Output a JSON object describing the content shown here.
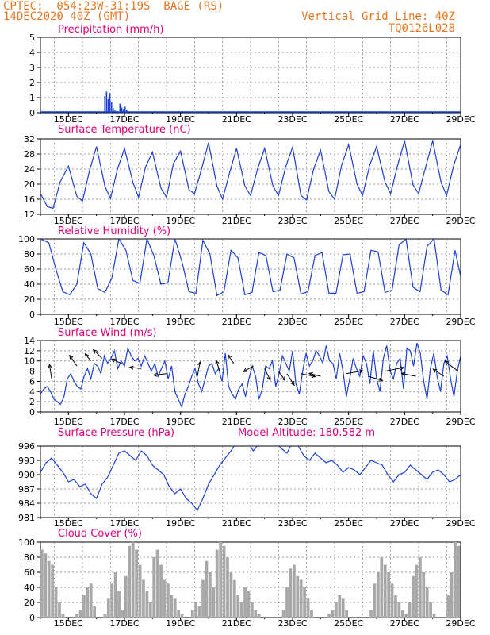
{
  "header": {
    "line1_left": "CPTEC:  054:23W-31:19S  BAGE (RS)",
    "line2_left": "14DEC2020 40Z (GMT)",
    "line2_right": "Vertical Grid Line: 40Z",
    "line3_right": "TQ0126L028"
  },
  "colors": {
    "header": "#e87722",
    "title": "#e0007a",
    "series": "#1a3fd6",
    "arrows": "#000000",
    "cloud": "#a8a8a8"
  },
  "x_ticks": [
    "15DEC",
    "17DEC",
    "19DEC",
    "21DEC",
    "23DEC",
    "25DEC",
    "27DEC",
    "29DEC"
  ],
  "chart_data": [
    {
      "type": "bar",
      "title": "Precipitation (mm/h)",
      "ylim": [
        0,
        5
      ],
      "yticks": [
        "0",
        "1",
        "2",
        "3",
        "4",
        "5"
      ],
      "x_days": [
        16.3,
        16.36,
        16.42,
        16.48,
        16.54,
        16.6,
        16.66,
        16.72,
        16.84,
        16.9,
        16.96,
        17.02,
        17.08
      ],
      "values": [
        1.1,
        1.4,
        0.9,
        1.3,
        0.7,
        0.3,
        0.15,
        0.1,
        0.6,
        0.35,
        0.25,
        0.4,
        0.2
      ]
    },
    {
      "type": "line",
      "title": "Surface Temperature (nC)",
      "ylim": [
        12,
        32
      ],
      "yticks": [
        "12",
        "16",
        "20",
        "24",
        "28",
        "32"
      ],
      "x_days": [
        14.0,
        14.25,
        14.45,
        14.7,
        15.0,
        15.3,
        15.5,
        15.75,
        16.0,
        16.3,
        16.5,
        16.75,
        17.0,
        17.3,
        17.5,
        17.75,
        18.0,
        18.3,
        18.5,
        18.75,
        19.0,
        19.3,
        19.5,
        19.75,
        20.0,
        20.3,
        20.5,
        20.75,
        21.0,
        21.3,
        21.5,
        21.75,
        22.0,
        22.3,
        22.5,
        22.75,
        23.0,
        23.3,
        23.5,
        23.75,
        24.0,
        24.3,
        24.5,
        24.75,
        25.0,
        25.3,
        25.5,
        25.75,
        26.0,
        26.3,
        26.5,
        26.75,
        27.0,
        27.3,
        27.5,
        27.75,
        28.0,
        28.3,
        28.5,
        28.75,
        29.0
      ],
      "values": [
        17.5,
        14.0,
        13.6,
        20.5,
        24.8,
        16.8,
        15.5,
        23.5,
        30.0,
        19.5,
        16.2,
        24.0,
        29.5,
        20.5,
        16.5,
        24.5,
        28.5,
        19.0,
        16.5,
        25.5,
        28.8,
        18.5,
        17.5,
        24.0,
        31.0,
        19.5,
        16.0,
        23.0,
        29.5,
        19.5,
        17.0,
        24.0,
        29.5,
        19.5,
        17.0,
        24.5,
        29.8,
        17.0,
        15.8,
        24.0,
        29.0,
        18.0,
        16.0,
        25.0,
        30.5,
        20.0,
        17.0,
        25.0,
        30.0,
        20.5,
        17.5,
        25.0,
        31.5,
        19.8,
        17.5,
        24.5,
        31.5,
        20.5,
        17.0,
        25.0,
        30.5
      ]
    },
    {
      "type": "line",
      "title": "Relative Humidity (%)",
      "ylim": [
        0,
        100
      ],
      "yticks": [
        "0",
        "20",
        "40",
        "60",
        "80",
        "100"
      ],
      "x_days": [
        14.0,
        14.3,
        14.55,
        14.8,
        15.05,
        15.3,
        15.55,
        15.8,
        16.05,
        16.3,
        16.55,
        16.8,
        17.05,
        17.3,
        17.55,
        17.8,
        18.05,
        18.3,
        18.55,
        18.8,
        19.05,
        19.3,
        19.55,
        19.8,
        20.05,
        20.3,
        20.55,
        20.8,
        21.05,
        21.3,
        21.55,
        21.8,
        22.05,
        22.3,
        22.55,
        22.8,
        23.05,
        23.3,
        23.55,
        23.8,
        24.05,
        24.3,
        24.55,
        24.8,
        25.05,
        25.3,
        25.55,
        25.8,
        26.05,
        26.3,
        26.55,
        26.8,
        27.05,
        27.3,
        27.55,
        27.8,
        28.05,
        28.3,
        28.55,
        28.8,
        29.0
      ],
      "values": [
        100,
        95,
        60,
        30,
        26,
        40,
        95,
        80,
        34,
        29,
        48,
        100,
        85,
        45,
        41,
        100,
        78,
        40,
        42,
        100,
        70,
        30,
        28,
        98,
        80,
        25,
        30,
        85,
        75,
        26,
        29,
        82,
        78,
        30,
        32,
        80,
        75,
        27,
        30,
        78,
        82,
        28,
        28,
        79,
        80,
        28,
        30,
        85,
        83,
        29,
        32,
        92,
        100,
        36,
        30,
        90,
        100,
        32,
        26,
        85,
        50
      ]
    },
    {
      "type": "line",
      "title": "Surface Wind (m/s)",
      "ylim": [
        0,
        14
      ],
      "yticks": [
        "0",
        "2",
        "4",
        "6",
        "8",
        "10",
        "12",
        "14"
      ],
      "x_days": [
        14.0,
        14.12,
        14.24,
        14.36,
        14.48,
        14.6,
        14.72,
        14.84,
        14.96,
        15.08,
        15.2,
        15.32,
        15.44,
        15.56,
        15.68,
        15.8,
        15.92,
        16.04,
        16.16,
        16.28,
        16.4,
        16.52,
        16.64,
        16.76,
        16.88,
        17.0,
        17.12,
        17.24,
        17.36,
        17.48,
        17.6,
        17.72,
        17.84,
        17.96,
        18.08,
        18.2,
        18.32,
        18.44,
        18.56,
        18.68,
        18.8,
        18.92,
        19.04,
        19.16,
        19.28,
        19.4,
        19.52,
        19.64,
        19.76,
        19.88,
        20.0,
        20.12,
        20.24,
        20.36,
        20.48,
        20.6,
        20.72,
        20.84,
        20.96,
        21.08,
        21.2,
        21.32,
        21.44,
        21.56,
        21.68,
        21.8,
        21.92,
        22.04,
        22.16,
        22.28,
        22.4,
        22.52,
        22.64,
        22.76,
        22.88,
        23.0,
        23.12,
        23.24,
        23.36,
        23.48,
        23.6,
        23.72,
        23.84,
        23.96,
        24.08,
        24.2,
        24.32,
        24.44,
        24.56,
        24.68,
        24.8,
        24.92,
        25.04,
        25.16,
        25.28,
        25.4,
        25.52,
        25.64,
        25.76,
        25.88,
        26.0,
        26.12,
        26.24,
        26.36,
        26.48,
        26.6,
        26.72,
        26.84,
        26.96,
        27.08,
        27.2,
        27.32,
        27.44,
        27.56,
        27.68,
        27.8,
        27.92,
        28.04,
        28.16,
        28.28,
        28.4,
        28.52,
        28.64,
        28.76,
        28.88,
        29.0
      ],
      "values": [
        3.5,
        4.5,
        5.0,
        4.0,
        2.5,
        2.0,
        1.5,
        3.0,
        6.5,
        7.5,
        6.0,
        5.0,
        4.5,
        7.0,
        8.5,
        6.5,
        9.5,
        9.0,
        7.5,
        11.0,
        9.5,
        10.5,
        12.0,
        8.5,
        10.0,
        9.0,
        12.5,
        11.0,
        10.0,
        10.5,
        9.0,
        11.0,
        9.5,
        8.0,
        9.5,
        7.0,
        8.5,
        10.0,
        6.5,
        9.0,
        4.0,
        2.5,
        1.0,
        3.5,
        5.0,
        7.0,
        8.5,
        5.5,
        4.0,
        6.5,
        9.0,
        9.5,
        7.5,
        8.5,
        6.0,
        11.5,
        5.0,
        3.5,
        2.5,
        4.5,
        5.5,
        3.0,
        6.5,
        9.0,
        7.0,
        2.5,
        4.5,
        9.0,
        8.5,
        10.0,
        5.0,
        7.5,
        11.0,
        9.5,
        8.0,
        12.0,
        5.5,
        3.5,
        8.0,
        11.5,
        9.0,
        10.0,
        12.0,
        11.0,
        9.5,
        13.0,
        10.0,
        9.5,
        6.5,
        11.5,
        8.0,
        3.0,
        6.5,
        10.5,
        8.5,
        7.0,
        11.0,
        9.5,
        5.5,
        12.0,
        6.5,
        4.0,
        10.5,
        13.0,
        8.0,
        6.5,
        9.5,
        10.5,
        4.5,
        12.5,
        12.0,
        9.0,
        13.5,
        11.5,
        6.0,
        2.5,
        8.5,
        11.5,
        7.0,
        4.0,
        9.5,
        11.0,
        6.5,
        3.0,
        8.0,
        11.0
      ]
    },
    {
      "type": "line",
      "title": "Surface Pressure (hPa)",
      "annotation": "Model Altitude: 180.582 m",
      "ylim": [
        981,
        996
      ],
      "yticks": [
        "981",
        "984",
        "987",
        "990",
        "993",
        "996"
      ],
      "x_days": [
        14.0,
        14.2,
        14.4,
        14.6,
        14.8,
        15.0,
        15.2,
        15.4,
        15.6,
        15.8,
        16.0,
        16.2,
        16.4,
        16.6,
        16.8,
        17.0,
        17.2,
        17.4,
        17.6,
        17.8,
        18.0,
        18.2,
        18.4,
        18.6,
        18.8,
        19.0,
        19.2,
        19.4,
        19.6,
        19.8,
        20.0,
        20.2,
        20.4,
        20.6,
        20.8,
        21.0,
        21.2,
        21.4,
        21.6,
        21.8,
        22.0,
        22.2,
        22.4,
        22.6,
        22.8,
        23.0,
        23.2,
        23.4,
        23.6,
        23.8,
        24.0,
        24.2,
        24.4,
        24.6,
        24.8,
        25.0,
        25.2,
        25.4,
        25.6,
        25.8,
        26.0,
        26.2,
        26.4,
        26.6,
        26.8,
        27.0,
        27.2,
        27.4,
        27.6,
        27.8,
        28.0,
        28.2,
        28.4,
        28.6,
        28.8,
        29.0
      ],
      "values": [
        990.5,
        992.5,
        993.5,
        992.0,
        990.5,
        988.5,
        989.0,
        987.5,
        988.0,
        986.0,
        985.0,
        988.0,
        989.5,
        992.0,
        994.5,
        995.0,
        994.0,
        993.0,
        995.0,
        994.0,
        992.0,
        991.0,
        990.0,
        987.5,
        986.0,
        987.0,
        985.0,
        984.0,
        982.5,
        985.0,
        988.0,
        990.0,
        992.0,
        993.5,
        995.0,
        997.0,
        996.5,
        997.0,
        995.0,
        996.5,
        997.5,
        996.0,
        997.0,
        995.5,
        994.5,
        997.5,
        996.0,
        994.0,
        993.0,
        994.5,
        993.5,
        992.5,
        993.0,
        992.0,
        990.5,
        991.5,
        991.0,
        990.0,
        991.5,
        993.0,
        992.5,
        992.0,
        990.0,
        988.5,
        990.0,
        990.5,
        992.0,
        991.0,
        990.0,
        989.0,
        990.5,
        991.0,
        990.0,
        988.5,
        989.0,
        990.0
      ]
    },
    {
      "type": "bar",
      "title": "Cloud Cover (%)",
      "ylim": [
        0,
        100
      ],
      "yticks": [
        "0",
        "20",
        "40",
        "60",
        "80",
        "100"
      ],
      "x_days_start": 14.0,
      "x_days_step": 0.125,
      "values": [
        90,
        85,
        75,
        70,
        40,
        20,
        5,
        0,
        0,
        0,
        5,
        10,
        30,
        40,
        45,
        15,
        0,
        0,
        5,
        25,
        45,
        60,
        35,
        10,
        55,
        95,
        100,
        90,
        70,
        50,
        35,
        20,
        80,
        90,
        70,
        50,
        45,
        30,
        25,
        10,
        5,
        0,
        0,
        10,
        20,
        15,
        50,
        75,
        60,
        40,
        90,
        100,
        95,
        80,
        60,
        50,
        30,
        20,
        40,
        35,
        20,
        10,
        5,
        0,
        0,
        0,
        0,
        0,
        0,
        10,
        40,
        65,
        70,
        55,
        50,
        40,
        25,
        10,
        0,
        0,
        0,
        0,
        5,
        10,
        20,
        30,
        25,
        10,
        0,
        0,
        0,
        0,
        0,
        0,
        10,
        45,
        60,
        80,
        70,
        60,
        45,
        30,
        20,
        10,
        5,
        20,
        55,
        70,
        80,
        60,
        40,
        20,
        5,
        0,
        0,
        0,
        30,
        60,
        100,
        95,
        75,
        55,
        35,
        15,
        0,
        0,
        0,
        10,
        55,
        90,
        100,
        95,
        70,
        40,
        20,
        0,
        0
      ]
    }
  ],
  "wind_vectors": {
    "x_days": [
      14.4,
      15.3,
      15.8,
      16.2,
      16.9,
      17.6,
      18.5,
      19.6,
      20.4,
      20.9,
      21.6,
      22.0,
      22.5,
      22.8,
      23.3,
      24.0,
      24.9,
      25.7,
      26.3,
      27.4,
      28.4,
      28.9
    ],
    "y_values": [
      6.5,
      9.0,
      10.0,
      10.5,
      9.5,
      8.5,
      7.5,
      7.0,
      8.0,
      9.5,
      9.0,
      8.5,
      8.0,
      7.5,
      7.5,
      7.0,
      7.5,
      7.0,
      8.0,
      7.0,
      7.0,
      8.0
    ],
    "u": [
      -0.3,
      -1.0,
      -0.8,
      -1.2,
      -1.4,
      -1.6,
      -1.8,
      0.4,
      -0.5,
      -0.8,
      -1.4,
      0.8,
      0.9,
      1.0,
      2.0,
      -1.6,
      2.4,
      2.0,
      2.6,
      -2.0,
      -1.5,
      -1.8
    ],
    "v": [
      2.0,
      1.5,
      1.0,
      1.2,
      0.6,
      0.2,
      -0.2,
      2.0,
      1.5,
      1.2,
      -0.8,
      -1.6,
      -1.3,
      -1.6,
      -0.4,
      0.4,
      0.4,
      -0.6,
      0.5,
      0.4,
      1.0,
      1.4
    ]
  }
}
